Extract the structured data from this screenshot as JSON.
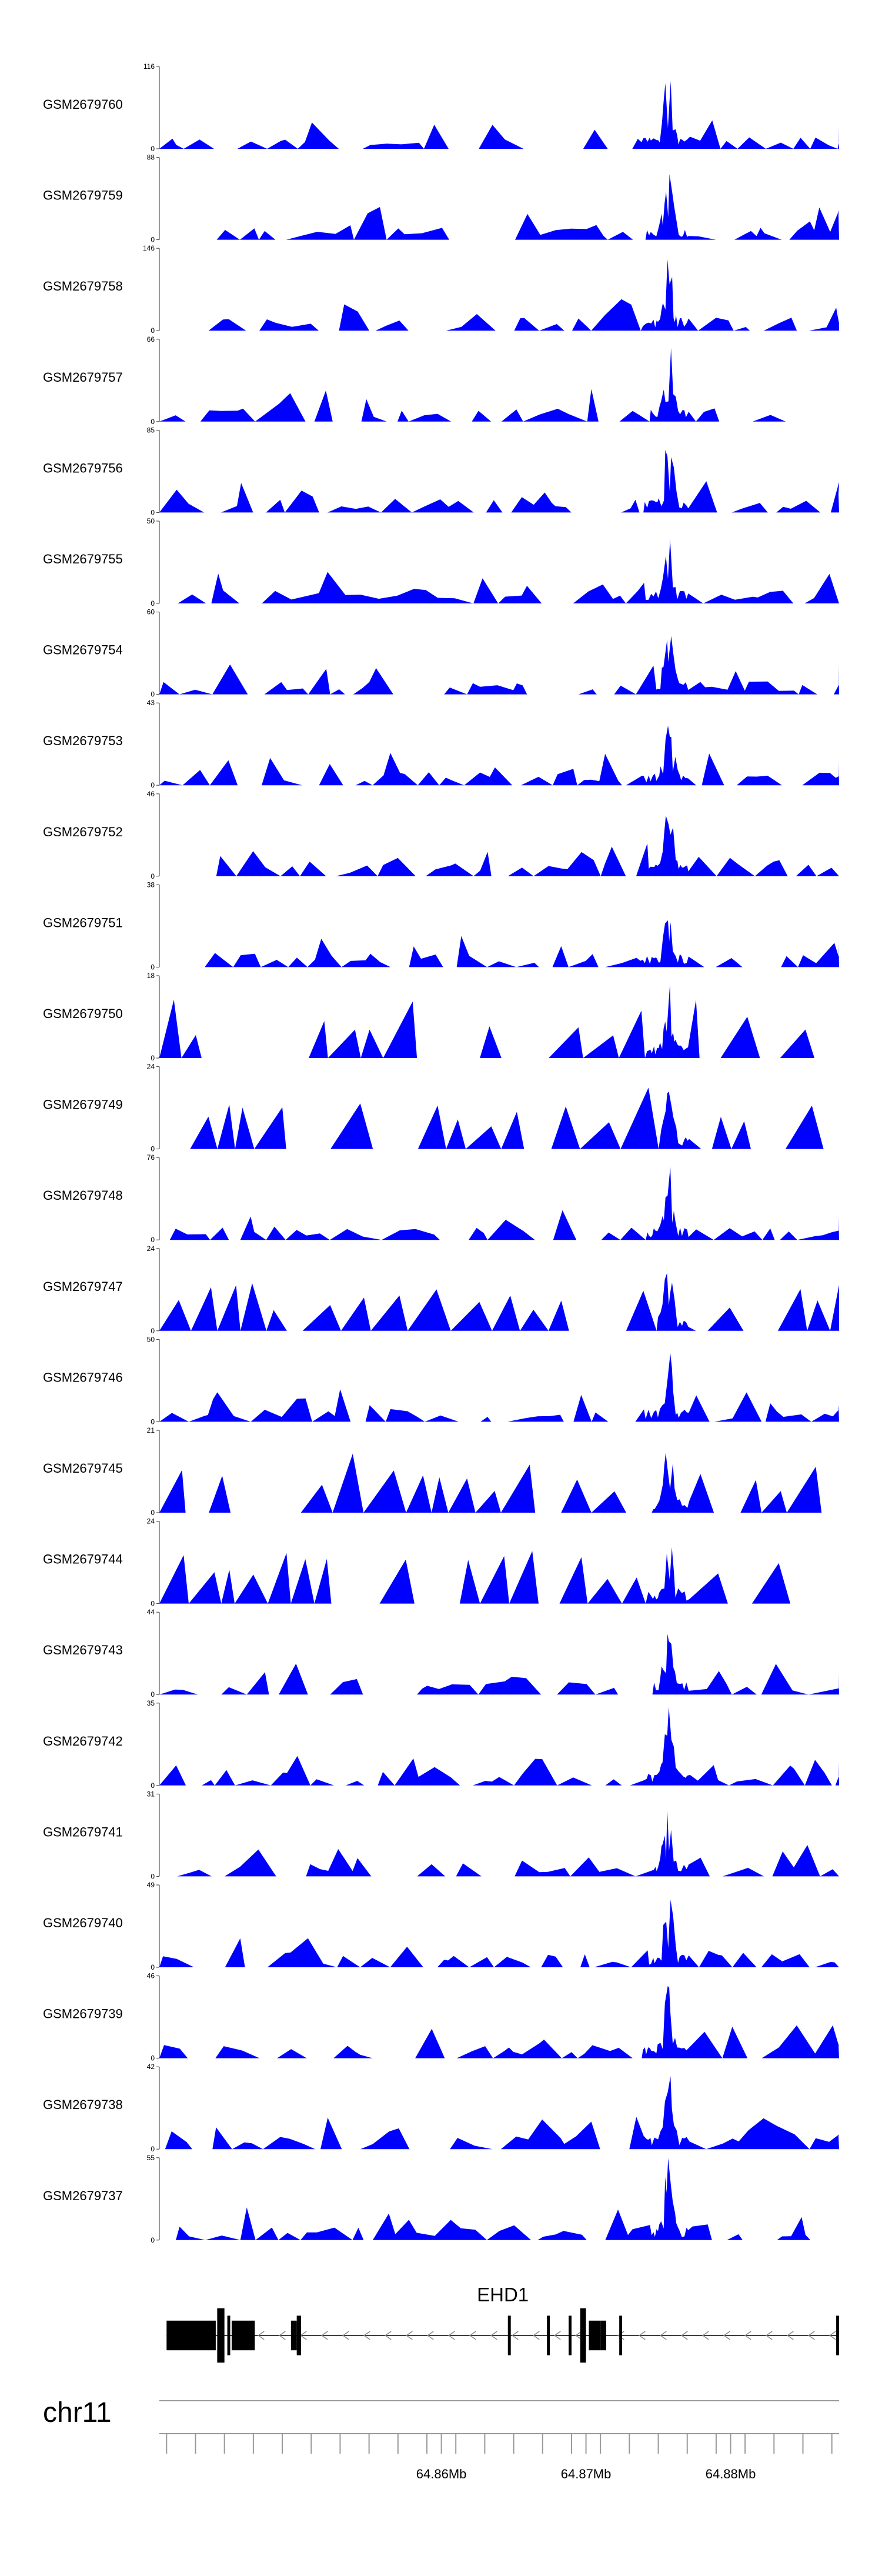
{
  "chart_data": {
    "type": "area",
    "title": "",
    "chromosome": "chr11",
    "x_range_mb": [
      64.8405,
      64.8875
    ],
    "xlim_bp": [
      64840500,
      64887500
    ],
    "x_ticks_bp": [
      64841000,
      64843000,
      64845000,
      64847000,
      64849000,
      64851000,
      64853000,
      64855000,
      64857000,
      64859000,
      64861000,
      64863000,
      64865000,
      64867000,
      64869000,
      64871000,
      64873000,
      64875000,
      64877000,
      64879000,
      64881000,
      64883000,
      64885000,
      64887000
    ],
    "x_tick_labels": [
      {
        "label": "64.86Mb",
        "bp": 64860000
      },
      {
        "label": "64.87Mb",
        "bp": 64870000
      },
      {
        "label": "64.88Mb",
        "bp": 64880000
      }
    ],
    "series_color": "#0000ff",
    "series": [
      {
        "name": "GSM2679760",
        "ymin": 0,
        "ymax": 116
      },
      {
        "name": "GSM2679759",
        "ymin": 0,
        "ymax": 88
      },
      {
        "name": "GSM2679758",
        "ymin": 0,
        "ymax": 146
      },
      {
        "name": "GSM2679757",
        "ymin": 0,
        "ymax": 66
      },
      {
        "name": "GSM2679756",
        "ymin": 0,
        "ymax": 85
      },
      {
        "name": "GSM2679755",
        "ymin": 0,
        "ymax": 50
      },
      {
        "name": "GSM2679754",
        "ymin": 0,
        "ymax": 60
      },
      {
        "name": "GSM2679753",
        "ymin": 0,
        "ymax": 43
      },
      {
        "name": "GSM2679752",
        "ymin": 0,
        "ymax": 46
      },
      {
        "name": "GSM2679751",
        "ymin": 0,
        "ymax": 38
      },
      {
        "name": "GSM2679750",
        "ymin": 0,
        "ymax": 18
      },
      {
        "name": "GSM2679749",
        "ymin": 0,
        "ymax": 24
      },
      {
        "name": "GSM2679748",
        "ymin": 0,
        "ymax": 76
      },
      {
        "name": "GSM2679747",
        "ymin": 0,
        "ymax": 24
      },
      {
        "name": "GSM2679746",
        "ymin": 0,
        "ymax": 50
      },
      {
        "name": "GSM2679745",
        "ymin": 0,
        "ymax": 21
      },
      {
        "name": "GSM2679744",
        "ymin": 0,
        "ymax": 24
      },
      {
        "name": "GSM2679743",
        "ymin": 0,
        "ymax": 44
      },
      {
        "name": "GSM2679742",
        "ymin": 0,
        "ymax": 35
      },
      {
        "name": "GSM2679741",
        "ymin": 0,
        "ymax": 31
      },
      {
        "name": "GSM2679740",
        "ymin": 0,
        "ymax": 49
      },
      {
        "name": "GSM2679739",
        "ymin": 0,
        "ymax": 46
      },
      {
        "name": "GSM2679738",
        "ymin": 0,
        "ymax": 42
      },
      {
        "name": "GSM2679737",
        "ymin": 0,
        "ymax": 55
      }
    ],
    "gene": {
      "name": "EHD1",
      "strand": "-",
      "start_bp": 64841000,
      "end_bp": 64887500,
      "exons_bp": [
        [
          64841000,
          64844400
        ],
        [
          64844500,
          64845000
        ],
        [
          64845200,
          64845400
        ],
        [
          64845500,
          64847100
        ],
        [
          64849600,
          64850000
        ],
        [
          64850000,
          64850300
        ],
        [
          64864600,
          64864800
        ],
        [
          64867300,
          64867500
        ],
        [
          64868800,
          64869000
        ],
        [
          64869600,
          64870000
        ],
        [
          64870200,
          64871000
        ],
        [
          64871000,
          64871400
        ],
        [
          64872300,
          64872500
        ],
        [
          64887300,
          64887500
        ]
      ]
    }
  }
}
